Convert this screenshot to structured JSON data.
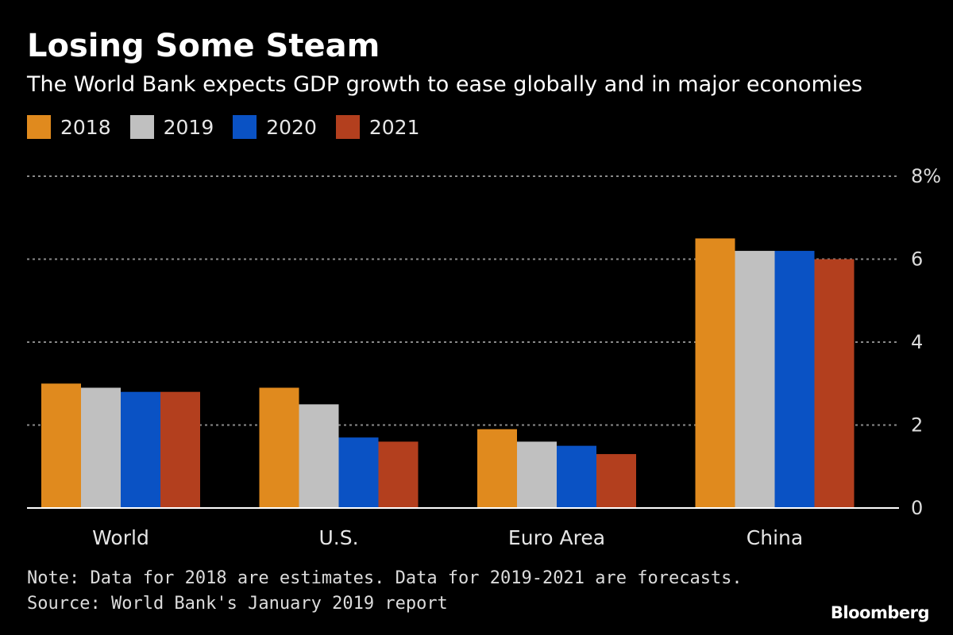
{
  "header": {
    "title": "Losing Some Steam",
    "subtitle": "The World Bank expects GDP growth to ease globally and in major economies"
  },
  "colors": {
    "2018": "#e08a1e",
    "2019": "#c0c0c0",
    "2020": "#0a52c4",
    "2021": "#b33f1e",
    "background": "#000000",
    "gridline": "#8a8a8a",
    "axis": "#ffffff"
  },
  "chart_data": {
    "type": "bar",
    "title": "Losing Some Steam",
    "subtitle": "The World Bank expects GDP growth to ease globally and in major economies",
    "categories": [
      "World",
      "U.S.",
      "Euro Area",
      "China"
    ],
    "series": [
      {
        "name": "2018",
        "values": [
          3.0,
          2.9,
          1.9,
          6.5
        ]
      },
      {
        "name": "2019",
        "values": [
          2.9,
          2.5,
          1.6,
          6.2
        ]
      },
      {
        "name": "2020",
        "values": [
          2.8,
          1.7,
          1.5,
          6.2
        ]
      },
      {
        "name": "2021",
        "values": [
          2.8,
          1.6,
          1.3,
          6.0
        ]
      }
    ],
    "ylim": [
      0,
      8
    ],
    "yticks": [
      0,
      2,
      4,
      6,
      8
    ],
    "ytick_labels": [
      "0",
      "2",
      "4",
      "6",
      "8%"
    ],
    "xlabel": "",
    "ylabel": "",
    "grid": true,
    "legend_position": "top-left"
  },
  "footer": {
    "note": "Note: Data for 2018 are estimates. Data for 2019-2021 are forecasts.",
    "source": "Source: World Bank's January 2019 report",
    "brand": "Bloomberg"
  }
}
